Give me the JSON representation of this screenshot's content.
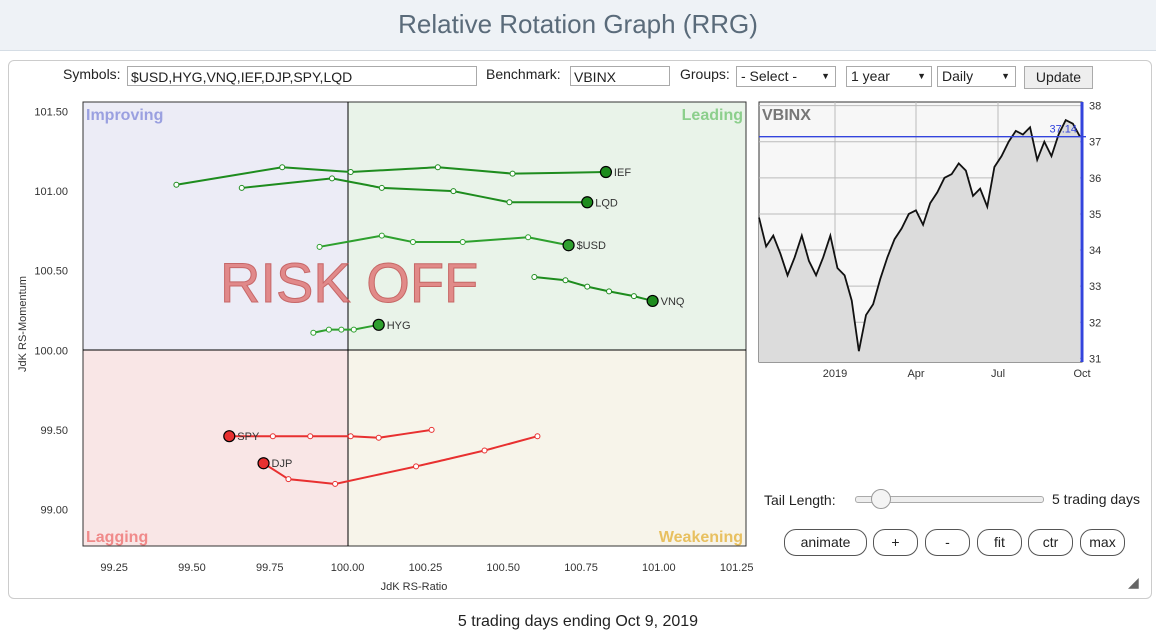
{
  "title": "Relative Rotation Graph (RRG)",
  "controls": {
    "symbols_label": "Symbols:",
    "symbols_value": "$USD,HYG,VNQ,IEF,DJP,SPY,LQD",
    "benchmark_label": "Benchmark:",
    "benchmark_value": "VBINX",
    "groups_label": "Groups:",
    "groups_value": "- Select -",
    "period_value": "1 year",
    "frequency_value": "Daily",
    "update_label": "Update"
  },
  "tail": {
    "label": "Tail Length:",
    "value": 5,
    "value_text": "5 trading days"
  },
  "buttons": {
    "animate": "animate",
    "plus": "+",
    "minus": "-",
    "fit": "fit",
    "ctr": "ctr",
    "max": "max"
  },
  "footer": "5 trading days ending Oct 9, 2019",
  "colors": {
    "leading": "#1e8c1e",
    "lagging": "#e83030"
  },
  "chart_data": [
    {
      "type": "scatter",
      "title": "RRG",
      "xlabel": "JdK RS-Ratio",
      "ylabel": "JdK RS-Momentum",
      "xlim": [
        99.15,
        101.28
      ],
      "ylim": [
        98.77,
        101.56
      ],
      "xticks": [
        "99.25",
        "99.50",
        "99.75",
        "100.00",
        "100.25",
        "100.50",
        "100.75",
        "101.00",
        "101.25"
      ],
      "yticks": [
        "99.00",
        "99.50",
        "100.00",
        "100.50",
        "101.00",
        "101.50"
      ],
      "quadrants": {
        "improving": "Improving",
        "leading": "Leading",
        "lagging": "Lagging",
        "weakening": "Weakening"
      },
      "annotation": "RISK OFF",
      "series": [
        {
          "name": "IEF",
          "color": "#1e8c1e",
          "x": [
            99.45,
            99.79,
            100.01,
            100.29,
            100.53,
            100.83
          ],
          "y": [
            101.04,
            101.15,
            101.12,
            101.15,
            101.11,
            101.12
          ]
        },
        {
          "name": "LQD",
          "color": "#1e8c1e",
          "x": [
            99.66,
            99.95,
            100.11,
            100.34,
            100.52,
            100.77
          ],
          "y": [
            101.02,
            101.08,
            101.02,
            101.0,
            100.93,
            100.93
          ]
        },
        {
          "name": "$USD",
          "color": "#2ea02e",
          "x": [
            99.91,
            100.11,
            100.21,
            100.37,
            100.58,
            100.71
          ],
          "y": [
            100.65,
            100.72,
            100.68,
            100.68,
            100.71,
            100.66
          ]
        },
        {
          "name": "VNQ",
          "color": "#1e8c1e",
          "x": [
            100.6,
            100.7,
            100.77,
            100.84,
            100.92,
            100.98
          ],
          "y": [
            100.46,
            100.44,
            100.4,
            100.37,
            100.34,
            100.31
          ]
        },
        {
          "name": "HYG",
          "color": "#2ea02e",
          "x": [
            99.89,
            99.94,
            99.98,
            100.02,
            100.1
          ],
          "y": [
            100.11,
            100.13,
            100.13,
            100.13,
            100.16
          ]
        },
        {
          "name": "SPY",
          "color": "#e83030",
          "x": [
            100.27,
            100.1,
            100.01,
            99.88,
            99.76,
            99.62
          ],
          "y": [
            99.5,
            99.45,
            99.46,
            99.46,
            99.46,
            99.46
          ]
        },
        {
          "name": "DJP",
          "color": "#e83030",
          "x": [
            100.61,
            100.44,
            100.22,
            99.96,
            99.81,
            99.73
          ],
          "y": [
            99.46,
            99.37,
            99.27,
            99.16,
            99.19,
            99.29
          ]
        }
      ]
    },
    {
      "type": "line",
      "title": "VBINX",
      "ylim": [
        30.9,
        38.1
      ],
      "yticks": [
        "31",
        "32",
        "33",
        "34",
        "35",
        "36",
        "37",
        "38"
      ],
      "xticks": [
        "2019",
        "Apr",
        "Jul",
        "Oct"
      ],
      "last_value": "37.14",
      "values": [
        34.9,
        34.1,
        34.4,
        33.9,
        33.3,
        33.8,
        34.4,
        33.7,
        33.3,
        33.8,
        34.4,
        33.5,
        33.3,
        32.6,
        31.2,
        32.2,
        32.5,
        33.2,
        33.8,
        34.3,
        34.6,
        35.0,
        35.1,
        34.7,
        35.3,
        35.6,
        36.0,
        36.1,
        36.4,
        36.2,
        35.5,
        35.7,
        35.2,
        36.3,
        36.6,
        37.0,
        37.3,
        37.2,
        37.4,
        36.5,
        37.0,
        36.6,
        37.2,
        37.6,
        37.5,
        37.14
      ]
    }
  ]
}
